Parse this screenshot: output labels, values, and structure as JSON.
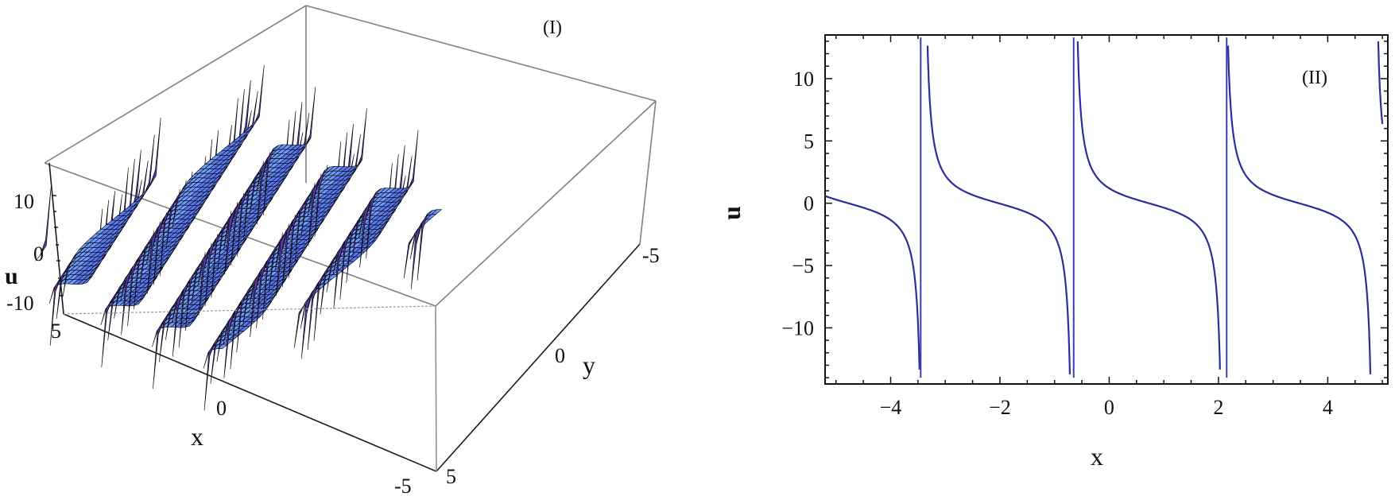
{
  "figure": {
    "panels": [
      "(I)",
      "(II)"
    ]
  },
  "chart_data": [
    {
      "type": "surface3d",
      "panel_label": "(I)",
      "xlabel": "x",
      "ylabel": "y",
      "zlabel": "u",
      "x_ticks": [
        "5",
        "0",
        "-5"
      ],
      "y_ticks": [
        "5",
        "0",
        "-5"
      ],
      "z_ticks": [
        "10",
        "0",
        "-10"
      ],
      "xlim": [
        -5,
        5
      ],
      "ylim": [
        -5,
        5
      ],
      "zlim": [
        -14,
        14
      ],
      "description": "Periodic singular (tan/cot-type) wave surface u(x,y) with parallel ridges and poles",
      "colors": {
        "surface_light": "#6fa0ff",
        "surface_mid": "#4a63e6",
        "surface_dark": "#5a36a8",
        "underside": "#e0a878",
        "mesh": "#000000",
        "box": "#808080"
      }
    },
    {
      "type": "line",
      "panel_label": "(II)",
      "xlabel": "x",
      "ylabel": "u",
      "x_ticks": [
        -4,
        -2,
        0,
        2,
        4
      ],
      "y_ticks": [
        10,
        5,
        0,
        -5,
        -10
      ],
      "xlim": [
        -5.2,
        5.1
      ],
      "ylim": [
        -14.5,
        13.5
      ],
      "grid": false,
      "line_color": "#2b2e9a",
      "period": 2.75,
      "poles_x": [
        -3.45,
        -0.65,
        2.15
      ],
      "series": [
        {
          "name": "u(x)",
          "x": [
            -5.2,
            -4.8,
            -4.4,
            -4.0,
            -3.8,
            -3.6,
            -3.5,
            -3.3,
            -3.2,
            -3.0,
            -2.6,
            -2.2,
            -1.8,
            -1.4,
            -1.0,
            -0.8,
            -0.7,
            -0.55,
            -0.4,
            -0.2,
            0.2,
            0.6,
            1.0,
            1.4,
            1.8,
            2.0,
            2.1,
            2.25,
            2.4,
            2.6,
            3.0,
            3.4,
            3.8,
            4.2,
            4.6,
            4.9
          ],
          "y": [
            0.8,
            0.1,
            -0.8,
            -2.4,
            -4.0,
            -7.5,
            -14,
            11.5,
            7.0,
            3.2,
            1.3,
            0.3,
            -0.8,
            -2.4,
            -5.5,
            -9.0,
            -14,
            12,
            6.5,
            3.3,
            1.2,
            0.1,
            -1.0,
            -2.8,
            -6.5,
            -10,
            -14,
            12,
            7,
            3.3,
            1.2,
            0.1,
            -1.0,
            -2.8,
            -6.5,
            -14
          ]
        }
      ]
    }
  ]
}
